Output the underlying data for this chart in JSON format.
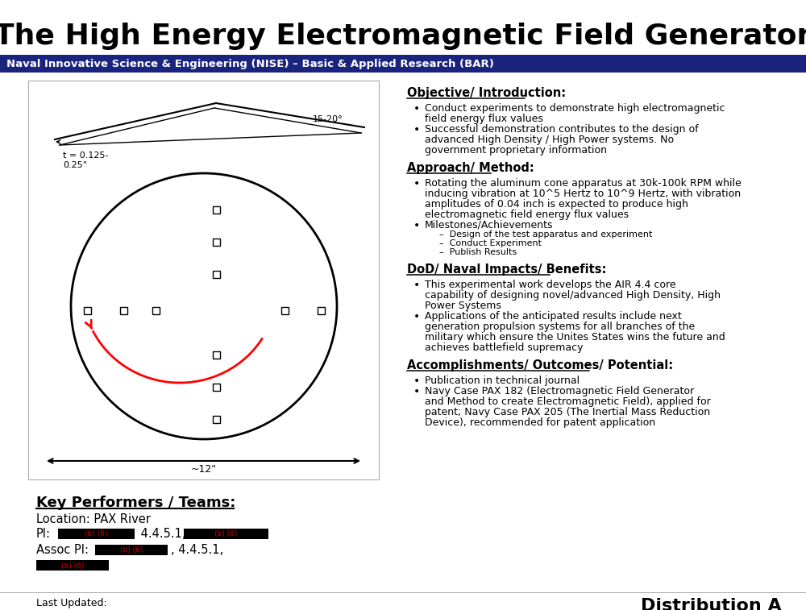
{
  "title": "The High Energy Electromagnetic Field Generator",
  "subtitle": "Naval Innovative Science & Engineering (NISE) – Basic & Applied Research (BAR)",
  "subtitle_bg": "#1a237e",
  "subtitle_color": "#ffffff",
  "bg_color": "#ffffff",
  "sections": [
    {
      "heading": "Objective/ Introduction:",
      "bullets": [
        "Conduct experiments to demonstrate high electromagnetic\nfield energy flux values",
        "Successful demonstration contributes to the design of\nadvanced High Density / High Power systems. No\ngovernment proprietary information"
      ],
      "sub_bullets": []
    },
    {
      "heading": "Approach/ Method:",
      "bullets": [
        "Rotating the aluminum cone apparatus at 30k-100k RPM while\ninducing vibration at 10^5 Hertz to 10^9 Hertz, with vibration\namplitudes of 0.04 inch is expected to produce high\nelectromagnetic field energy flux values",
        "Milestones/Achievements"
      ],
      "sub_bullets": [
        "Design of the test apparatus and experiment",
        "Conduct Experiment",
        "Publish Results"
      ]
    },
    {
      "heading": "DoD/ Naval Impacts/ Benefits:",
      "bullets": [
        "This experimental work develops the AIR 4.4 core\ncapability of designing novel/advanced High Density, High\nPower Systems",
        "Applications of the anticipated results include next\ngeneration propulsion systems for all branches of the\nmilitary which ensure the Unites States wins the future and\nachieves battlefield supremacy"
      ],
      "sub_bullets": []
    },
    {
      "heading": "Accomplishments/ Outcomes/ Potential:",
      "bullets": [
        "Publication in technical journal",
        "Navy Case PAX 182 (Electromagnetic Field Generator\nand Method to create Electromagnetic Field), applied for\npatent; Navy Case PAX 205 (The Inertial Mass Reduction\nDevice), recommended for patent application"
      ],
      "sub_bullets": []
    }
  ],
  "key_performers_heading": "Key Performers / Teams:",
  "location_text": "Location: PAX River",
  "last_updated": "Last Updated:",
  "distribution": "Distribution A",
  "redacted_color": "#000000",
  "redacted_label_color": "#cc0000",
  "redacted_label": "(b) (6)"
}
